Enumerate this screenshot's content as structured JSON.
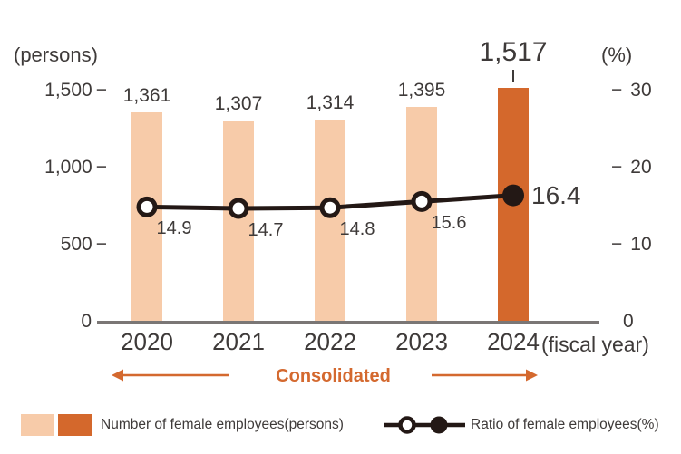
{
  "chart_data": {
    "type": "bar+line",
    "categories": [
      "2020",
      "2021",
      "2022",
      "2023",
      "2024"
    ],
    "series": [
      {
        "name": "Number of female employees(persons)",
        "type": "bar",
        "axis": "left",
        "values": [
          1361,
          1307,
          1314,
          1395,
          1517
        ],
        "value_labels": [
          "1,361",
          "1,307",
          "1,314",
          "1,395",
          "1,517"
        ],
        "highlight_index": 4
      },
      {
        "name": "Ratio of female employees(%)",
        "type": "line",
        "axis": "right",
        "values": [
          14.9,
          14.7,
          14.8,
          15.6,
          16.4
        ],
        "value_labels": [
          "14.9",
          "14.7",
          "14.8",
          "15.6",
          "16.4"
        ],
        "highlight_index": 4
      }
    ],
    "left_axis": {
      "label": "(persons)",
      "max": 1500,
      "ticks": [
        {
          "value": 1500,
          "label": "1,500"
        },
        {
          "value": 1000,
          "label": "1,000"
        },
        {
          "value": 500,
          "label": "500"
        },
        {
          "value": 0,
          "label": "0"
        }
      ]
    },
    "right_axis": {
      "label": "(%)",
      "max": 30,
      "ticks": [
        {
          "value": 30,
          "label": "30"
        },
        {
          "value": 20,
          "label": "20"
        },
        {
          "value": 10,
          "label": "10"
        },
        {
          "value": 0,
          "label": "0"
        }
      ]
    },
    "x_suffix": "(fiscal year)",
    "range_label": "Consolidated",
    "legend_position": "bottom",
    "grid": false
  },
  "colors": {
    "bar_light": "#f7cba9",
    "bar_dark": "#d4682c",
    "accent_orange": "#d4692f",
    "line_dark": "#231815",
    "text": "#3e3a39",
    "axis_gray": "#7a7675"
  }
}
